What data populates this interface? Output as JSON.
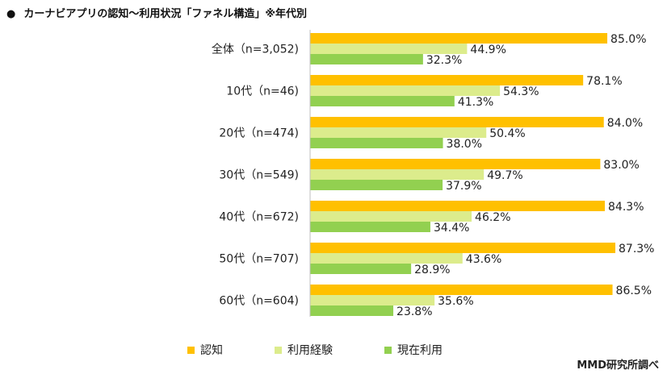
{
  "title": {
    "bullet": "●",
    "text": "カーナビアプリの認知～利用状況「ファネル構造」※年代別"
  },
  "credit": "MMD研究所調べ",
  "chart_data": {
    "type": "bar",
    "orientation": "horizontal",
    "categories": [
      "全体（n=3,052)",
      "10代（n=46)",
      "20代（n=474)",
      "30代（n=549)",
      "40代（n=672)",
      "50代（n=707)",
      "60代（n=604)"
    ],
    "series": [
      {
        "name": "認知",
        "color": "#ffc000",
        "values": [
          85.0,
          78.1,
          84.0,
          83.0,
          84.3,
          87.3,
          86.5
        ]
      },
      {
        "name": "利用経験",
        "color": "#dcec8c",
        "values": [
          44.9,
          54.3,
          50.4,
          49.7,
          46.2,
          43.6,
          35.6
        ]
      },
      {
        "name": "現在利用",
        "color": "#92d050",
        "values": [
          32.3,
          41.3,
          38.0,
          37.9,
          34.4,
          28.9,
          23.8
        ]
      }
    ],
    "value_suffix": "%",
    "xlim": [
      0,
      100
    ],
    "grid": false,
    "legend_position": "bottom"
  }
}
